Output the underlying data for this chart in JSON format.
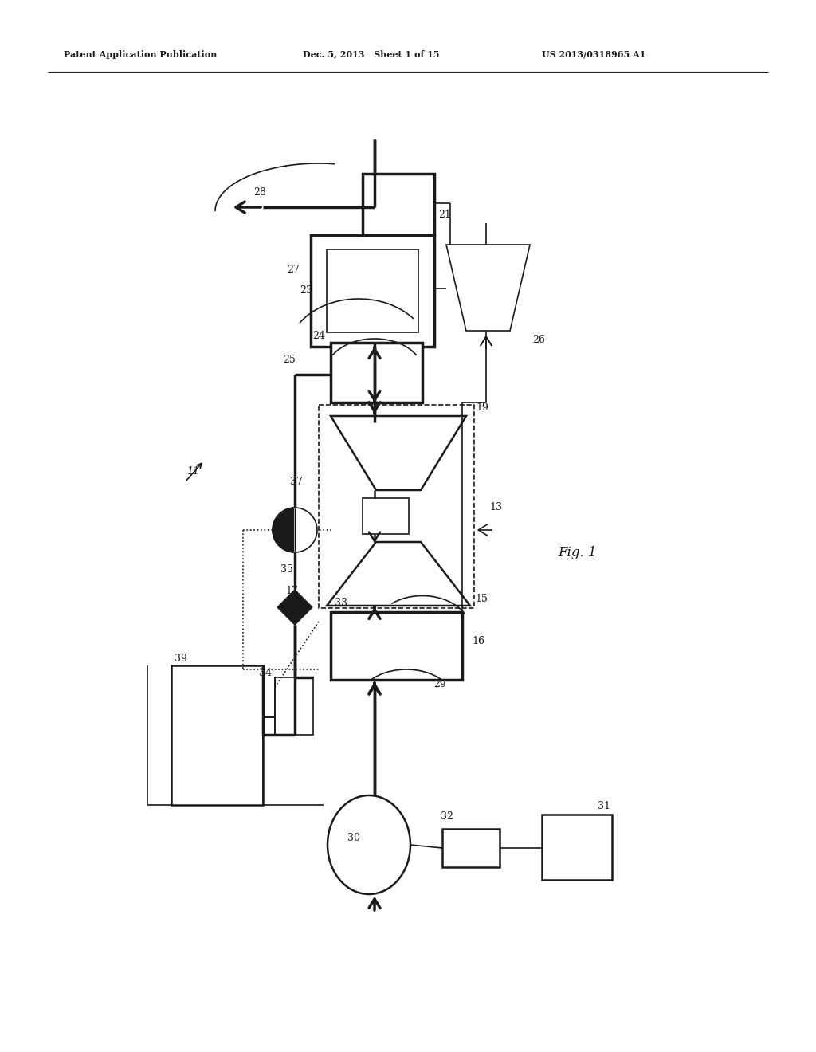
{
  "bg_color": "#ffffff",
  "line_color": "#1a1a1a",
  "header_left": "Patent Application Publication",
  "header_mid": "Dec. 5, 2013   Sheet 1 of 15",
  "header_right": "US 2013/0318965 A1",
  "fig_label": "Fig. 1"
}
